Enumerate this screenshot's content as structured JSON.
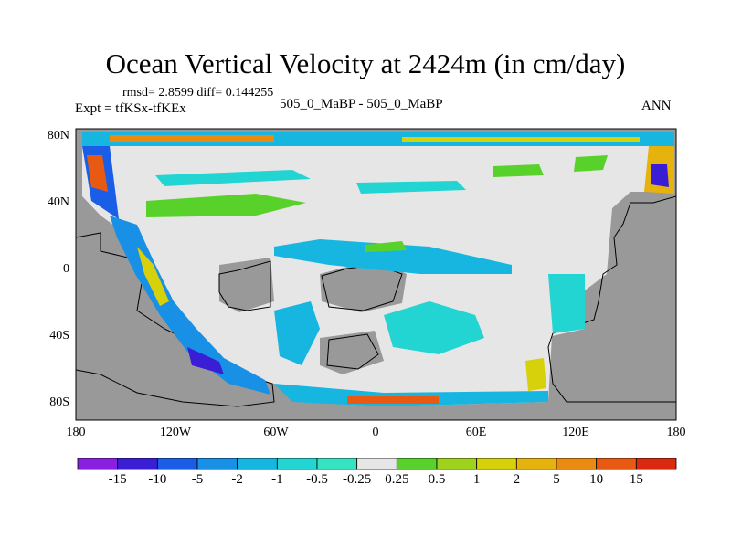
{
  "title": "Ocean Vertical Velocity at 2424m (in cm/day)",
  "stats": "rmsd= 2.8599 diff= 0.144255",
  "expt_label": "Expt = tfKSx-tfKEx",
  "case_label": "505_0_MaBP - 505_0_MaBP",
  "season": "ANN",
  "axes": {
    "lat_ticks": [
      "80N",
      "40N",
      "0",
      "40S",
      "80S"
    ],
    "lon_ticks": [
      "180",
      "120W",
      "60W",
      "0",
      "60E",
      "120E",
      "180"
    ]
  },
  "colorbar": {
    "labels": [
      "-15",
      "-10",
      "-5",
      "-2",
      "-1",
      "-0.5",
      "-0.25",
      "0.25",
      "0.5",
      "1",
      "2",
      "5",
      "10",
      "15"
    ],
    "colors": [
      "#8a1fe0",
      "#3a1ed6",
      "#1a5ee8",
      "#1890e6",
      "#16b6e0",
      "#22d4d2",
      "#35e3c0",
      "#e6e6e6",
      "#58d22a",
      "#9fd21c",
      "#d6d10a",
      "#e6b20e",
      "#ea8a10",
      "#e85a12",
      "#d92a10"
    ]
  },
  "colors": {
    "land": "#999999",
    "no_signal": "#e6e6e6"
  }
}
